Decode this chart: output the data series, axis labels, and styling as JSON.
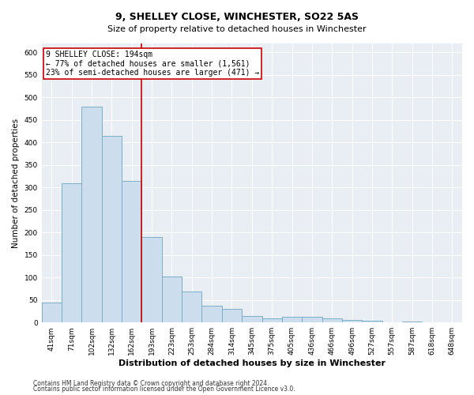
{
  "title1": "9, SHELLEY CLOSE, WINCHESTER, SO22 5AS",
  "title2": "Size of property relative to detached houses in Winchester",
  "xlabel": "Distribution of detached houses by size in Winchester",
  "ylabel": "Number of detached properties",
  "categories": [
    "41sqm",
    "71sqm",
    "102sqm",
    "132sqm",
    "162sqm",
    "193sqm",
    "223sqm",
    "253sqm",
    "284sqm",
    "314sqm",
    "345sqm",
    "375sqm",
    "405sqm",
    "436sqm",
    "466sqm",
    "496sqm",
    "527sqm",
    "557sqm",
    "587sqm",
    "618sqm",
    "648sqm"
  ],
  "values": [
    45,
    310,
    480,
    415,
    315,
    190,
    102,
    68,
    38,
    30,
    14,
    10,
    13,
    12,
    9,
    5,
    3,
    1,
    2,
    1,
    1
  ],
  "bar_color": "#ccdded",
  "bar_edge_color": "#7aafc8",
  "vline_color": "#cc0000",
  "vline_x_index": 5,
  "annotation_line1": "9 SHELLEY CLOSE: 194sqm",
  "annotation_line2": "← 77% of detached houses are smaller (1,561)",
  "annotation_line3": "23% of semi-detached houses are larger (471) →",
  "annotation_box_color": "#ffffff",
  "annotation_box_edge_color": "#cc0000",
  "footnote1": "Contains HM Land Registry data © Crown copyright and database right 2024.",
  "footnote2": "Contains public sector information licensed under the Open Government Licence v3.0.",
  "bg_color": "#ffffff",
  "plot_bg_color": "#e8eef4",
  "grid_color": "#ffffff",
  "ylim": [
    0,
    620
  ],
  "yticks": [
    0,
    50,
    100,
    150,
    200,
    250,
    300,
    350,
    400,
    450,
    500,
    550,
    600
  ],
  "title1_fontsize": 9,
  "title2_fontsize": 8,
  "xlabel_fontsize": 8,
  "ylabel_fontsize": 7.5,
  "tick_fontsize": 6.5,
  "annot_fontsize": 7,
  "footnote_fontsize": 5.5
}
